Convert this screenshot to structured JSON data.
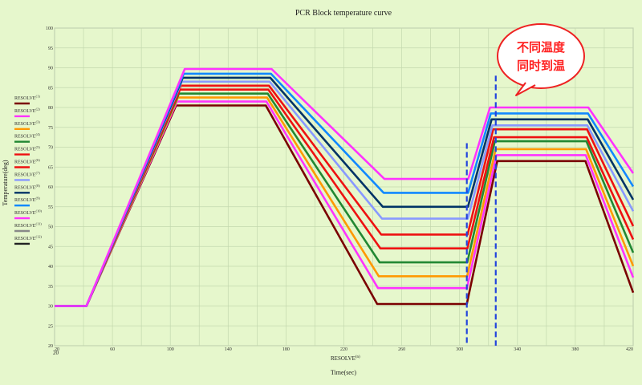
{
  "chart_data": {
    "type": "line",
    "title": "PCR Block temperature curve",
    "xlabel": "Time(sec)",
    "x_axis_unit_label": "RESOLVE",
    "x_axis_unit_sup": "(n)",
    "x_axis_extra_label": "20",
    "ylabel": "Temperature(deg)",
    "xlim": [
      20,
      420
    ],
    "ylim": [
      20,
      100
    ],
    "x_ticks": [
      20,
      60,
      100,
      140,
      180,
      220,
      260,
      300,
      340,
      380,
      420
    ],
    "y_ticks": [
      20,
      25,
      30,
      35,
      40,
      45,
      50,
      55,
      60,
      65,
      70,
      75,
      80,
      85,
      90,
      95,
      100
    ],
    "grid": true,
    "legend_placement": "left",
    "dashed_markers": [
      {
        "x": 305,
        "y_top": 71,
        "color": "#2244dd"
      },
      {
        "x": 325,
        "y_top": 88,
        "color": "#2244dd"
      }
    ],
    "annotation": {
      "line1": "不同温度",
      "line2": "同时到温",
      "color": "#ff2222",
      "anchor_x": 327,
      "anchor_y": 92
    },
    "series": [
      {
        "name": "RESOLVE",
        "sup": "(1)",
        "color": "#7a0000",
        "hold1": 80.5,
        "low": 30.5,
        "hold2": 66.5
      },
      {
        "name": "RESOLVE",
        "sup": "(2)",
        "color": "#ff33ff",
        "hold1": 81.5,
        "low": 34.5,
        "hold2": 68.0
      },
      {
        "name": "RESOLVE",
        "sup": "(3)",
        "color": "#ff9900",
        "hold1": 82.5,
        "low": 37.5,
        "hold2": 69.5
      },
      {
        "name": "RESOLVE",
        "sup": "(4)",
        "color": "#228833",
        "hold1": 83.5,
        "low": 41.0,
        "hold2": 71.5
      },
      {
        "name": "RESOLVE",
        "sup": "(5)",
        "color": "#ee1111",
        "hold1": 84.5,
        "low": 44.5,
        "hold2": 72.5
      },
      {
        "name": "RESOLVE",
        "sup": "(6)",
        "color": "#ee1111",
        "hold1": 85.5,
        "low": 48.0,
        "hold2": 74.5
      },
      {
        "name": "RESOLVE",
        "sup": "(7)",
        "color": "#8899ff",
        "hold1": 86.5,
        "low": 52.0,
        "hold2": 75.5
      },
      {
        "name": "RESOLVE",
        "sup": "(8)",
        "color": "#003366",
        "hold1": 87.5,
        "low": 55.0,
        "hold2": 77.0
      },
      {
        "name": "RESOLVE",
        "sup": "(9)",
        "color": "#1188ff",
        "hold1": 88.5,
        "low": 58.5,
        "hold2": 78.5
      },
      {
        "name": "RESOLVE",
        "sup": "(10)",
        "color": "#ff33ff",
        "hold1": 89.7,
        "low": 62.0,
        "hold2": 80.0
      },
      {
        "name": "RESOLVE",
        "sup": "(11)",
        "color": "#888888",
        "hold1": null,
        "low": null,
        "hold2": null
      },
      {
        "name": "RESOLVE",
        "sup": "(12)",
        "color": "#222222",
        "hold1": null,
        "low": null,
        "hold2": null
      }
    ]
  }
}
